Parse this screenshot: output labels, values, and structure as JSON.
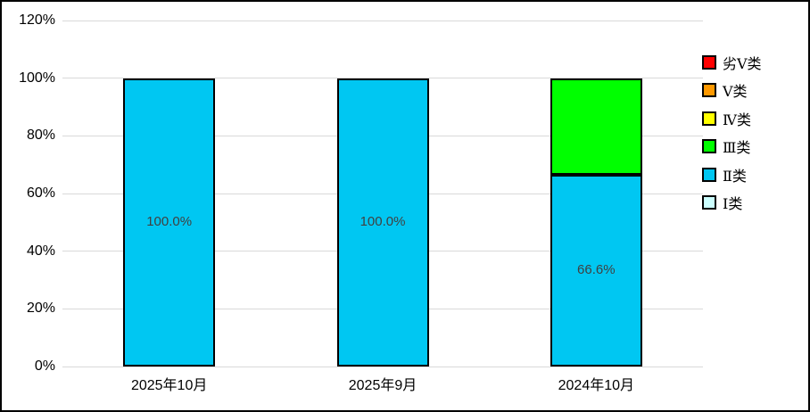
{
  "chart_data": {
    "type": "bar",
    "stacked": true,
    "title": "",
    "xlabel": "",
    "ylabel": "",
    "categories": [
      "2025年10月",
      "2025年9月",
      "2024年10月"
    ],
    "series": [
      {
        "name": "劣Ⅴ类",
        "color": "#ff0000",
        "values": [
          0,
          0,
          0
        ]
      },
      {
        "name": "Ⅴ类",
        "color": "#ff9900",
        "values": [
          0,
          0,
          0
        ]
      },
      {
        "name": "Ⅳ类",
        "color": "#ffff00",
        "values": [
          0,
          0,
          0
        ]
      },
      {
        "name": "Ⅲ类",
        "color": "#00ff00",
        "values": [
          0,
          0,
          33.4
        ]
      },
      {
        "name": "Ⅱ类",
        "color": "#00c7f2",
        "values": [
          100,
          100,
          66.6
        ],
        "labels": [
          "100.0%",
          "100.0%",
          "66.6%"
        ]
      },
      {
        "name": "Ⅰ类",
        "color": "#ccffff",
        "values": [
          0,
          0,
          0
        ]
      }
    ],
    "ylim": [
      0,
      120
    ],
    "ytick_labels": [
      "0%",
      "20%",
      "40%",
      "60%",
      "80%",
      "100%",
      "120%"
    ],
    "ytick_values": [
      0,
      20,
      40,
      60,
      80,
      100,
      120
    ],
    "grid": true,
    "legend_position": "right",
    "colors": {
      "grid": "#d9d9d9",
      "bar_border": "#000000",
      "data_label": "#404040",
      "axis_text": "#000000",
      "background": "#ffffff",
      "frame_border": "#000000"
    }
  }
}
